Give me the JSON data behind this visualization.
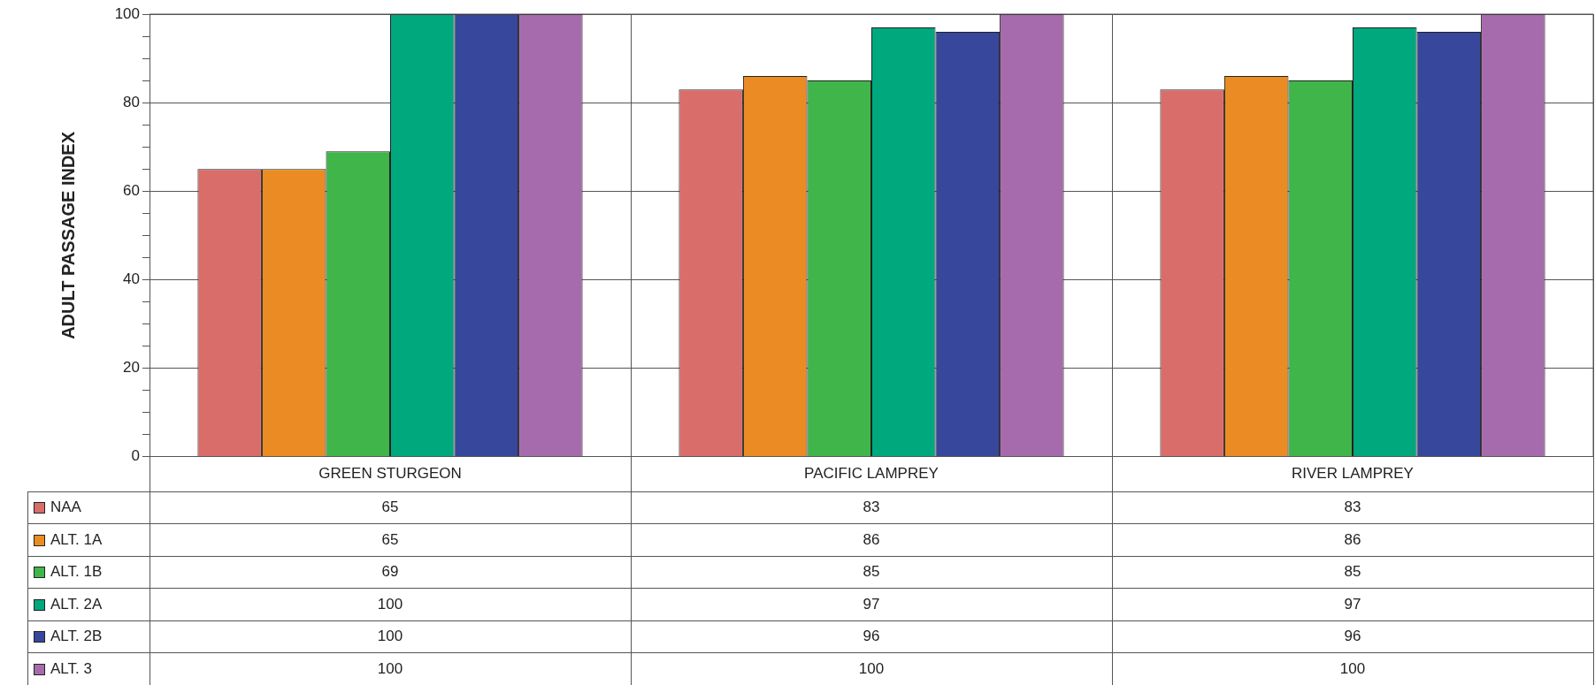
{
  "chart_data": {
    "type": "bar",
    "ylabel": "ADULT PASSAGE INDEX",
    "categories": [
      "GREEN STURGEON",
      "PACIFIC LAMPREY",
      "RIVER LAMPREY"
    ],
    "series": [
      {
        "name": "NAA",
        "color": "#d96d6a",
        "values": [
          65,
          83,
          83
        ]
      },
      {
        "name": "ALT. 1A",
        "color": "#ea8c23",
        "values": [
          65,
          86,
          86
        ]
      },
      {
        "name": "ALT. 1B",
        "color": "#3fb54a",
        "values": [
          69,
          85,
          85
        ]
      },
      {
        "name": "ALT. 2A",
        "color": "#00a87e",
        "values": [
          100,
          97,
          97
        ]
      },
      {
        "name": "ALT. 2B",
        "color": "#37479b",
        "values": [
          100,
          96,
          96
        ]
      },
      {
        "name": "ALT. 3",
        "color": "#a66bac",
        "values": [
          100,
          100,
          100
        ]
      }
    ],
    "ylim": [
      0,
      100
    ],
    "yticks": [
      0,
      {
        "value": 5,
        "label": null
      },
      {
        "value": 10,
        "label": null
      },
      {
        "value": 15,
        "label": null
      },
      20,
      {
        "value": 25,
        "label": null
      },
      {
        "value": 30,
        "label": null
      },
      {
        "value": 35,
        "label": null
      },
      40,
      {
        "value": 45,
        "label": null
      },
      {
        "value": 50,
        "label": null
      },
      {
        "value": 55,
        "label": null
      },
      60,
      {
        "value": 65,
        "label": null
      },
      {
        "value": 70,
        "label": null
      },
      {
        "value": 75,
        "label": null
      },
      80,
      {
        "value": 85,
        "label": null
      },
      {
        "value": 90,
        "label": null
      },
      {
        "value": 95,
        "label": null
      },
      100
    ],
    "grid": true,
    "legend": "bottom left",
    "data_labels": true
  }
}
